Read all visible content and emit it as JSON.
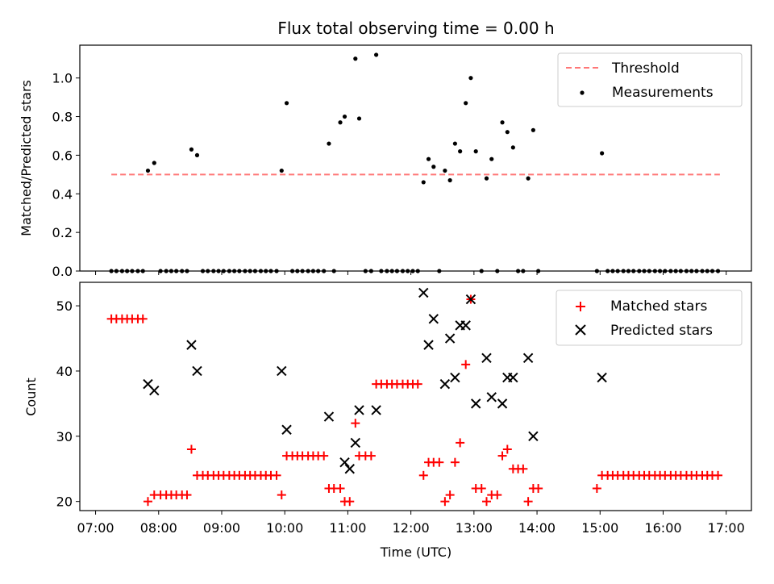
{
  "colors": {
    "threshold": "#ff7777",
    "measurement": "#000000",
    "matched": "#ff0000",
    "predicted": "#000000"
  },
  "chart_data": [
    {
      "type": "scatter",
      "title": "Flux total observing time = 0.00 h",
      "xlabel": "",
      "ylabel": "Matched/Predicted stars",
      "xlim": [
        6.75,
        17.4
      ],
      "ylim": [
        0,
        1.17
      ],
      "yticks": [
        0.0,
        0.2,
        0.4,
        0.6,
        0.8,
        1.0
      ],
      "yticklabels": [
        "0.0",
        "0.2",
        "0.4",
        "0.6",
        "0.8",
        "1.0"
      ],
      "legend": {
        "position": "top-right",
        "threshold_label": "Threshold",
        "measurements_label": "Measurements"
      },
      "threshold": {
        "y": 0.5,
        "x_range": [
          7.25,
          16.9
        ]
      },
      "measurements": {
        "x": [
          7.83,
          7.93,
          8.52,
          8.61,
          9.95,
          10.03,
          10.7,
          10.88,
          10.95,
          11.12,
          11.18,
          11.45,
          12.2,
          12.28,
          12.36,
          12.54,
          12.62,
          12.7,
          12.78,
          12.87,
          12.95,
          13.03,
          13.2,
          13.28,
          13.45,
          13.53,
          13.62,
          13.86,
          13.94,
          15.03
        ],
        "y": [
          0.52,
          0.56,
          0.63,
          0.6,
          0.52,
          0.87,
          0.66,
          0.77,
          0.8,
          1.1,
          0.79,
          1.12,
          0.46,
          0.58,
          0.54,
          0.52,
          0.47,
          0.66,
          0.62,
          0.87,
          1.0,
          0.62,
          0.48,
          0.58,
          0.77,
          0.72,
          0.64,
          0.48,
          0.73,
          0.61
        ]
      },
      "zero_measurements_x": [
        7.25,
        7.33,
        7.42,
        7.5,
        7.58,
        7.67,
        7.75,
        8.03,
        8.12,
        8.2,
        8.28,
        8.37,
        8.45,
        8.7,
        8.78,
        8.87,
        8.95,
        9.03,
        9.12,
        9.2,
        9.28,
        9.37,
        9.45,
        9.53,
        9.62,
        9.7,
        9.78,
        9.87,
        10.12,
        10.2,
        10.28,
        10.37,
        10.45,
        10.53,
        10.62,
        10.78,
        11.28,
        11.37,
        11.53,
        11.62,
        11.7,
        11.78,
        11.87,
        11.95,
        12.03,
        12.11,
        12.45,
        13.12,
        13.37,
        13.7,
        13.78,
        14.02,
        14.95,
        15.12,
        15.2,
        15.28,
        15.37,
        15.45,
        15.53,
        15.62,
        15.7,
        15.78,
        15.87,
        15.95,
        16.03,
        16.12,
        16.2,
        16.28,
        16.37,
        16.45,
        16.53,
        16.62,
        16.7,
        16.78,
        16.87
      ]
    },
    {
      "type": "scatter",
      "title": "",
      "xlabel": "Time (UTC)",
      "ylabel": "Count",
      "xlim": [
        6.75,
        17.4
      ],
      "ylim": [
        18.6,
        53.6
      ],
      "xticks": [
        7,
        8,
        9,
        10,
        11,
        12,
        13,
        14,
        15,
        16,
        17
      ],
      "xticklabels": [
        "07:00",
        "08:00",
        "09:00",
        "10:00",
        "11:00",
        "12:00",
        "13:00",
        "14:00",
        "15:00",
        "16:00",
        "17:00"
      ],
      "yticks": [
        20,
        30,
        40,
        50
      ],
      "yticklabels": [
        "20",
        "30",
        "40",
        "50"
      ],
      "legend": {
        "position": "top-right",
        "matched_label": "Matched stars",
        "predicted_label": "Predicted stars"
      },
      "matched": {
        "x": [
          7.25,
          7.33,
          7.42,
          7.5,
          7.58,
          7.67,
          7.75,
          7.83,
          7.93,
          8.03,
          8.12,
          8.2,
          8.28,
          8.37,
          8.45,
          8.52,
          8.61,
          8.7,
          8.78,
          8.87,
          8.95,
          9.03,
          9.12,
          9.2,
          9.28,
          9.37,
          9.45,
          9.53,
          9.62,
          9.7,
          9.78,
          9.87,
          9.95,
          10.03,
          10.12,
          10.2,
          10.28,
          10.37,
          10.45,
          10.53,
          10.62,
          10.7,
          10.78,
          10.88,
          10.95,
          11.03,
          11.12,
          11.18,
          11.28,
          11.37,
          11.45,
          11.53,
          11.62,
          11.7,
          11.78,
          11.87,
          11.95,
          12.03,
          12.11,
          12.2,
          12.28,
          12.36,
          12.45,
          12.54,
          12.62,
          12.7,
          12.78,
          12.87,
          12.95,
          13.03,
          13.12,
          13.2,
          13.28,
          13.37,
          13.45,
          13.53,
          13.62,
          13.7,
          13.78,
          13.86,
          13.94,
          14.02,
          14.95,
          15.03,
          15.12,
          15.2,
          15.28,
          15.37,
          15.45,
          15.53,
          15.62,
          15.7,
          15.78,
          15.87,
          15.95,
          16.03,
          16.12,
          16.2,
          16.28,
          16.37,
          16.45,
          16.53,
          16.62,
          16.7,
          16.78,
          16.87
        ],
        "y": [
          48,
          48,
          48,
          48,
          48,
          48,
          48,
          20,
          21,
          21,
          21,
          21,
          21,
          21,
          21,
          28,
          24,
          24,
          24,
          24,
          24,
          24,
          24,
          24,
          24,
          24,
          24,
          24,
          24,
          24,
          24,
          24,
          21,
          27,
          27,
          27,
          27,
          27,
          27,
          27,
          27,
          22,
          22,
          22,
          20,
          20,
          32,
          27,
          27,
          27,
          38,
          38,
          38,
          38,
          38,
          38,
          38,
          38,
          38,
          24,
          26,
          26,
          26,
          20,
          21,
          26,
          29,
          41,
          51,
          22,
          22,
          20,
          21,
          21,
          27,
          28,
          25,
          25,
          25,
          20,
          22,
          22,
          22,
          24,
          24,
          24,
          24,
          24,
          24,
          24,
          24,
          24,
          24,
          24,
          24,
          24,
          24,
          24,
          24,
          24,
          24,
          24,
          24,
          24,
          24,
          24
        ]
      },
      "predicted": {
        "x": [
          7.83,
          7.93,
          8.52,
          8.61,
          9.95,
          10.03,
          10.7,
          10.95,
          11.03,
          11.12,
          11.18,
          11.45,
          12.2,
          12.28,
          12.36,
          12.54,
          12.62,
          12.7,
          12.78,
          12.87,
          12.95,
          13.03,
          13.2,
          13.28,
          13.45,
          13.53,
          13.62,
          13.86,
          13.94,
          15.03
        ],
        "y": [
          38,
          37,
          44,
          40,
          40,
          31,
          33,
          26,
          25,
          29,
          34,
          34,
          52,
          44,
          48,
          38,
          45,
          39,
          47,
          47,
          51,
          35,
          42,
          36,
          35,
          39,
          39,
          42,
          30,
          39
        ]
      }
    }
  ]
}
